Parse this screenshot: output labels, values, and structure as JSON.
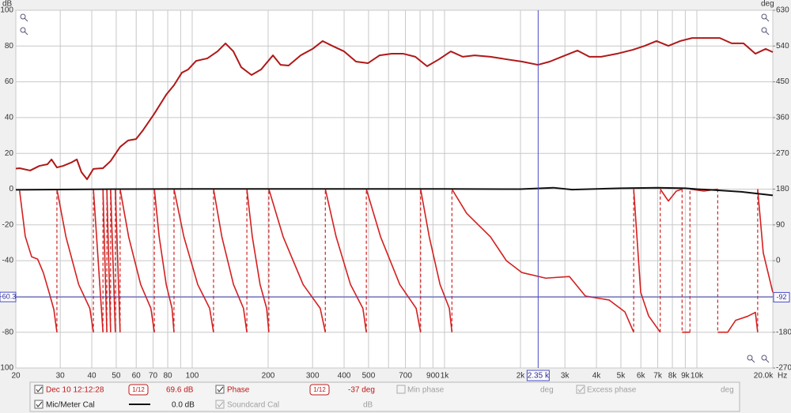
{
  "chart_data": {
    "type": "line",
    "xscale": "log",
    "x_unit": "Hz",
    "y_unit": "dB",
    "y2_unit": "deg",
    "xlim": [
      20,
      20000
    ],
    "ylim": [
      -100,
      100
    ],
    "y2lim": [
      -270,
      630
    ],
    "grid": true,
    "xticks": [
      20,
      30,
      40,
      50,
      60,
      70,
      80,
      100,
      200,
      300,
      400,
      500,
      700,
      900,
      {
        "value": 1000,
        "label": "1k"
      },
      {
        "value": 2000,
        "label": "2k"
      },
      {
        "value": 3000,
        "label": "3k"
      },
      {
        "value": 4000,
        "label": "4k"
      },
      {
        "value": 5000,
        "label": "5k"
      },
      {
        "value": 6000,
        "label": "6k"
      },
      {
        "value": 7000,
        "label": "7k"
      },
      {
        "value": 8000,
        "label": "8k"
      },
      {
        "value": 9000,
        "label": "9k"
      },
      {
        "value": 10000,
        "label": "10k"
      },
      {
        "value": 20000,
        "label": "20.0k"
      }
    ],
    "x_minor_ticks": [
      90,
      600,
      800
    ],
    "yticks": [
      -100,
      -80,
      -60,
      -40,
      -20,
      0,
      20,
      40,
      60,
      80,
      100
    ],
    "y2ticks": [
      -270,
      -180,
      -90,
      0,
      90,
      180,
      270,
      360,
      450,
      540,
      630
    ],
    "series": [
      {
        "name": "Dec 10 12:12:28",
        "color": "#b01818",
        "x": [
          20,
          20.7,
          22.8,
          24.8,
          26.7,
          27.7,
          29.1,
          30.8,
          33.1,
          34.9,
          36.4,
          38.3,
          40.6,
          44.3,
          47.5,
          51.8,
          55.7,
          59.9,
          63.5,
          70.8,
          78.9,
          84.7,
          91,
          96.4,
          103.7,
          114.8,
          126,
          135.5,
          145.6,
          156.4,
          171.8,
          187.5,
          209,
          224,
          241,
          269,
          300,
          329,
          359,
          400,
          446,
          497,
          553,
          617,
          687,
          766,
          853,
          951,
          1059,
          1181,
          1316,
          1521,
          1758,
          2028,
          2345,
          2613,
          2912,
          3365,
          3750,
          4178,
          4825,
          5573,
          6211,
          6921,
          7713,
          8595,
          9579,
          10670,
          12330,
          13740,
          15310,
          17060,
          18740,
          20000
        ],
        "values": [
          11.5,
          11.7,
          10.4,
          13.0,
          13.9,
          16.6,
          12.1,
          13.0,
          14.8,
          16.6,
          9.5,
          5.5,
          11.3,
          11.7,
          15.7,
          23.6,
          27.2,
          28.0,
          32.5,
          42.2,
          52.8,
          58.1,
          65.1,
          66.9,
          71.7,
          73.1,
          77.0,
          81.5,
          77.0,
          68.2,
          63.8,
          66.9,
          74.8,
          69.5,
          69.1,
          74.8,
          78.4,
          82.8,
          80.1,
          77.0,
          71.3,
          70.4,
          74.8,
          75.7,
          75.7,
          74.0,
          68.7,
          72.6,
          77.0,
          74.0,
          74.8,
          74.0,
          72.6,
          71.3,
          69.5,
          71.3,
          74.0,
          77.5,
          74.0,
          74.0,
          75.7,
          77.9,
          80.1,
          82.8,
          80.1,
          82.8,
          84.5,
          84.5,
          84.5,
          81.5,
          81.5,
          75.7,
          78.4,
          76.6
        ]
      },
      {
        "name": "Phase",
        "color": "#d42020",
        "axis": "y2",
        "x": [
          20.7,
          21.8,
          23.1,
          24.4,
          25.7,
          27.1,
          28.3,
          29.1,
          null,
          29.1,
          31.6,
          35.5,
          39.3,
          40.6,
          null,
          40.6,
          44.3,
          null,
          44.3,
          45.9,
          null,
          45.9,
          47.5,
          null,
          47.5,
          49.6,
          null,
          49.6,
          51.8,
          null,
          51.8,
          56.0,
          62.5,
          68.6,
          70.8,
          null,
          70.8,
          74.0,
          78.9,
          83.2,
          84.7,
          null,
          84.7,
          92.7,
          105.2,
          117.3,
          121.5,
          null,
          121.5,
          131.1,
          145.8,
          159.7,
          164.7,
          null,
          164.7,
          173.1,
          185.8,
          197.3,
          201.3,
          null,
          201.3,
          229.4,
          275.2,
          321.7,
          337,
          null,
          337,
          372,
          424,
          474.8,
          490,
          null,
          490,
          558,
          665,
          772,
          804,
          null,
          804,
          870,
          960,
          1045,
          1070,
          null,
          1070,
          1224,
          1521,
          1758,
          2028,
          2518,
          3127,
          3615,
          4490,
          5188,
          5620,
          null,
          5620,
          5992,
          6440,
          7160,
          null,
          7160,
          7713,
          8290,
          8740,
          null,
          8740,
          9390,
          null,
          9390,
          10670,
          12100,
          null,
          12100,
          13250,
          14250,
          15890,
          17060,
          17420,
          null,
          17420,
          18330,
          20000
        ],
        "values": [
          176,
          61,
          10,
          4,
          -30,
          -80,
          -123,
          -180,
          null,
          180,
          60,
          -60,
          -120,
          -180,
          null,
          180,
          -180,
          null,
          180,
          -180,
          null,
          180,
          -180,
          null,
          180,
          -180,
          null,
          180,
          -180,
          null,
          180,
          60,
          -60,
          -120,
          -180,
          null,
          180,
          60,
          -60,
          -120,
          -180,
          null,
          180,
          60,
          -60,
          -120,
          -180,
          null,
          180,
          60,
          -60,
          -120,
          -180,
          null,
          180,
          60,
          -60,
          -120,
          -180,
          null,
          180,
          60,
          -60,
          -120,
          -180,
          null,
          180,
          60,
          -60,
          -120,
          -180,
          null,
          180,
          60,
          -60,
          -120,
          -180,
          null,
          180,
          60,
          -60,
          -120,
          -180,
          null,
          180,
          119,
          60,
          0,
          -30,
          -44,
          -40,
          -89,
          -99,
          -129,
          -180,
          null,
          180,
          -80,
          -139,
          -180,
          null,
          180,
          150,
          175,
          180,
          null,
          -180,
          -180,
          null,
          180,
          175,
          180,
          null,
          -180,
          -180,
          -150,
          -140,
          -130,
          -180,
          null,
          180,
          20,
          -80
        ]
      },
      {
        "name": "Mic/Meter Cal",
        "color": "#111111",
        "x": [
          20,
          50,
          100,
          500,
          1000,
          2000,
          2700,
          3200,
          5000,
          7000,
          9000,
          10000,
          12000,
          15000,
          20000
        ],
        "values": [
          -0.4,
          0,
          0.1,
          0.1,
          0.1,
          0,
          0.8,
          -0.3,
          0.5,
          0.8,
          0.5,
          0,
          -0.6,
          -1.5,
          -3.5
        ]
      }
    ],
    "cursor": {
      "x": {
        "value": 2350,
        "label": "2.35 k"
      },
      "y": -60.3,
      "y2": -92
    },
    "legend": {
      "spl_smoothing": "1/12",
      "spl_readout": "69.6 dB",
      "phase_smoothing": "1/12",
      "phase_readout": "-37 deg",
      "min_phase": "Min phase",
      "min_phase_unit": "deg",
      "excess_phase": "Excess phase",
      "excess_phase_unit": "deg",
      "cal_readout": "0.0 dB",
      "soundcard_cal": "Soundcard Cal",
      "soundcard_cal_unit": "dB"
    }
  }
}
